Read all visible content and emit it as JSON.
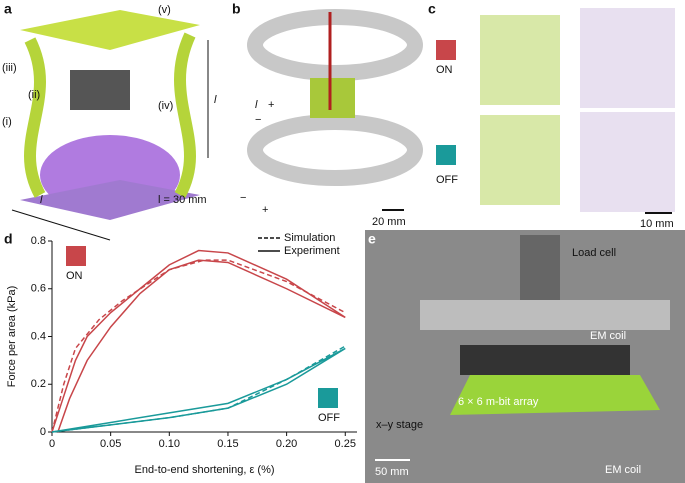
{
  "panel_a": {
    "letter": "a",
    "labels": [
      "(v)",
      "(iii)",
      "(ii)",
      "(iv)",
      "(i)"
    ],
    "length_left": "l",
    "length_right": "l = 30 mm",
    "height": "l"
  },
  "panel_b": {
    "letter": "b",
    "length": "l",
    "signs": [
      "+",
      "−",
      "−",
      "+"
    ],
    "scale": "20 mm"
  },
  "panel_c": {
    "letter": "c",
    "on": "ON",
    "off": "OFF",
    "scale": "10 mm"
  },
  "panel_e": {
    "letter": "e",
    "load_cell": "Load cell",
    "em_coil_top": "EM coil",
    "array": "6 × 6 m-bit array",
    "stage": "x–y stage",
    "scale": "50 mm",
    "em_coil_bottom": "EM coil"
  },
  "chart_data": {
    "type": "line",
    "letter": "d",
    "x_label": "End-to-end shortening, ε (%)",
    "y_label": "Force per area (kPa)",
    "xlim": [
      0,
      0.26
    ],
    "ylim": [
      0,
      0.8
    ],
    "xticks": [
      0,
      0.05,
      {
        "value": 0.1,
        "label": "0.10"
      },
      0.15,
      {
        "value": 0.2,
        "label": "0.20"
      },
      0.25
    ],
    "yticks": [
      0,
      0.2,
      0.4,
      0.6,
      0.8
    ],
    "legend": [
      {
        "name": "Simulation",
        "dashed": true
      },
      {
        "name": "Experiment",
        "dashed": false
      }
    ],
    "states": [
      {
        "name": "ON",
        "color": "#c8464a"
      },
      {
        "name": "OFF",
        "color": "#1a9a9a"
      }
    ],
    "series": [
      {
        "state": 0,
        "dashed": false,
        "color": "#c8464a",
        "x": [
          0,
          0.01,
          0.02,
          0.03,
          0.05,
          0.075,
          0.1,
          0.125,
          0.15,
          0.2,
          0.25,
          0.2,
          0.15,
          0.125,
          0.1,
          0.075,
          0.05,
          0.03,
          0.015,
          0.005
        ],
        "values": [
          0,
          0.15,
          0.3,
          0.4,
          0.5,
          0.6,
          0.7,
          0.76,
          0.75,
          0.64,
          0.48,
          0.6,
          0.71,
          0.72,
          0.68,
          0.58,
          0.44,
          0.3,
          0.14,
          0
        ]
      },
      {
        "state": 0,
        "dashed": true,
        "color": "#c8464a",
        "x": [
          0,
          0.01,
          0.02,
          0.04,
          0.06,
          0.1,
          0.13,
          0.15,
          0.2,
          0.25
        ],
        "values": [
          0,
          0.2,
          0.35,
          0.47,
          0.55,
          0.68,
          0.72,
          0.72,
          0.63,
          0.5
        ]
      },
      {
        "state": 1,
        "dashed": false,
        "color": "#1a9a9a",
        "x": [
          0,
          0.05,
          0.1,
          0.15,
          0.2,
          0.25,
          0.2,
          0.15,
          0.1,
          0.05,
          0
        ],
        "values": [
          0,
          0.03,
          0.06,
          0.1,
          0.2,
          0.35,
          0.22,
          0.12,
          0.08,
          0.04,
          0
        ]
      },
      {
        "state": 1,
        "dashed": true,
        "color": "#1a9a9a",
        "x": [
          0,
          0.05,
          0.1,
          0.15,
          0.2,
          0.25
        ],
        "values": [
          0,
          0.03,
          0.06,
          0.1,
          0.22,
          0.36
        ]
      }
    ]
  }
}
